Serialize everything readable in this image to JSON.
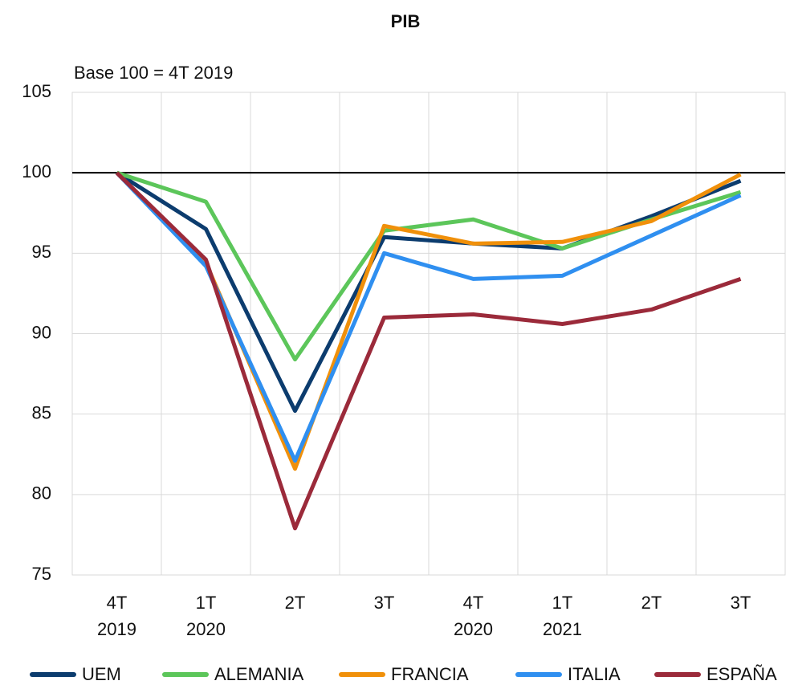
{
  "chart_data": {
    "type": "line",
    "title": "PIB",
    "subtitle": "Base 100 = 4T 2019",
    "categories": [
      [
        "4T",
        "2019"
      ],
      [
        "1T",
        "2020"
      ],
      [
        "2T"
      ],
      [
        "3T"
      ],
      [
        "4T",
        "2020"
      ],
      [
        "1T",
        "2021"
      ],
      [
        "2T"
      ],
      [
        "3T"
      ]
    ],
    "series": [
      {
        "name": "UEM",
        "color": "#0c3c6e",
        "values": [
          100,
          96.5,
          85.2,
          96.0,
          95.6,
          95.3,
          97.3,
          99.5
        ]
      },
      {
        "name": "ALEMANIA",
        "color": "#5cc65a",
        "values": [
          100,
          98.2,
          88.4,
          96.4,
          97.1,
          95.3,
          97.1,
          98.8
        ]
      },
      {
        "name": "FRANCIA",
        "color": "#f0900a",
        "values": [
          100,
          94.4,
          81.6,
          96.7,
          95.6,
          95.7,
          97.0,
          99.9
        ]
      },
      {
        "name": "ITALIA",
        "color": "#2f8ff0",
        "values": [
          100,
          94.2,
          82.1,
          95.0,
          93.4,
          93.6,
          96.1,
          98.6
        ]
      },
      {
        "name": "ESPAÑA",
        "color": "#9b2a3a",
        "values": [
          100,
          94.6,
          77.9,
          91.0,
          91.2,
          90.6,
          91.5,
          93.4
        ]
      }
    ],
    "ylim": [
      75,
      105
    ],
    "yticks": [
      75,
      80,
      85,
      90,
      95,
      100,
      105
    ],
    "grid": true,
    "reference_line": 100,
    "legend": "bottom"
  }
}
